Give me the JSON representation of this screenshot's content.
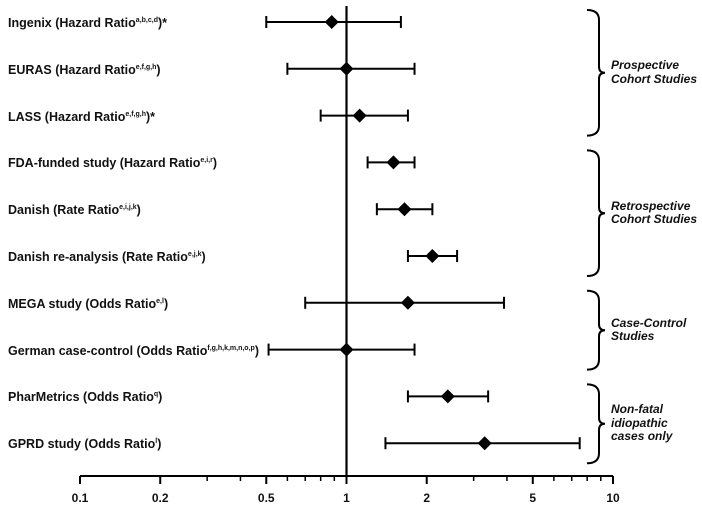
{
  "chart_data": {
    "type": "forest",
    "title": "",
    "xlabel": "",
    "ylabel": "",
    "x_scale": "log",
    "xlim": [
      0.1,
      10
    ],
    "x_ticks": [
      0.1,
      0.2,
      0.5,
      1,
      2,
      5,
      10
    ],
    "x_tick_labels": [
      "0.1",
      "0.2",
      "0.5",
      "1",
      "2",
      "5",
      "10"
    ],
    "reference_line": 1,
    "grid": false,
    "studies": [
      {
        "name": "Ingenix (Hazard Ratio",
        "sup": "a,b,c,d",
        "suffix": ")*",
        "estimate": 0.88,
        "lower": 0.5,
        "upper": 1.6
      },
      {
        "name": "EURAS (Hazard Ratio",
        "sup": "e,f,g,h",
        "suffix": ")",
        "estimate": 1.0,
        "lower": 0.6,
        "upper": 1.8
      },
      {
        "name": "LASS (Hazard Ratio",
        "sup": "e,f,g,h",
        "suffix": ")*",
        "estimate": 1.12,
        "lower": 0.8,
        "upper": 1.7
      },
      {
        "name": "FDA-funded study (Hazard Ratio",
        "sup": "e,i,r",
        "suffix": ")",
        "estimate": 1.5,
        "lower": 1.2,
        "upper": 1.8
      },
      {
        "name": "Danish (Rate Ratio",
        "sup": "e,i,j,k",
        "suffix": ")",
        "estimate": 1.65,
        "lower": 1.3,
        "upper": 2.1
      },
      {
        "name": "Danish re-analysis (Rate Ratio",
        "sup": "e,j,k",
        "suffix": ")",
        "estimate": 2.1,
        "lower": 1.7,
        "upper": 2.6
      },
      {
        "name": "MEGA study (Odds Ratio",
        "sup": "e,l",
        "suffix": ")",
        "estimate": 1.7,
        "lower": 0.7,
        "upper": 3.9
      },
      {
        "name": "German case-control (Odds Ratio",
        "sup": "f,g,h,k,m,n,o,p",
        "suffix": ")",
        "estimate": 1.0,
        "lower": 0.51,
        "upper": 1.8
      },
      {
        "name": "PharMetrics (Odds Ratio",
        "sup": "q",
        "suffix": ")",
        "estimate": 2.4,
        "lower": 1.7,
        "upper": 3.4
      },
      {
        "name": "GPRD study (Odds Ratio",
        "sup": "l",
        "suffix": ")",
        "estimate": 3.3,
        "lower": 1.4,
        "upper": 7.5
      }
    ],
    "groups": [
      {
        "label": "Prospective Cohort Studies",
        "first": 0,
        "last": 2
      },
      {
        "label": "Retrospective Cohort Studies",
        "first": 3,
        "last": 5
      },
      {
        "label": "Case-Control Studies",
        "first": 6,
        "last": 7
      },
      {
        "label": "Non-fatal idiopathic cases only",
        "first": 8,
        "last": 9
      }
    ]
  }
}
